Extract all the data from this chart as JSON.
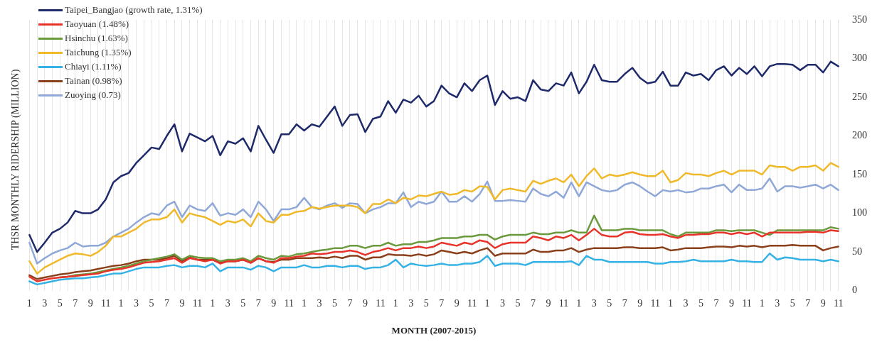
{
  "chart_data": {
    "type": "line",
    "xlabel": "MONTH (2007-2015)",
    "ylabel": "THSR MONTHLY RIDERSHIP (MILLION)",
    "categories": [
      "1",
      null,
      "3",
      null,
      "5",
      null,
      "7",
      null,
      "9",
      null,
      "11",
      null,
      "1",
      null,
      "3",
      null,
      "5",
      null,
      "7",
      null,
      "9",
      null,
      "11",
      null,
      "1",
      null,
      "3",
      null,
      "5",
      null,
      "7",
      null,
      "9",
      null,
      "11",
      null,
      "1",
      null,
      "3",
      null,
      "5",
      null,
      "7",
      null,
      "9",
      null,
      "11",
      null,
      "1",
      null,
      "3",
      null,
      "5",
      null,
      "7",
      null,
      "9",
      null,
      "11",
      null,
      "1",
      null,
      "3",
      null,
      "5",
      null,
      "7",
      null,
      "9",
      null,
      "11",
      null,
      "1",
      null,
      "3",
      null,
      "5",
      null,
      "7",
      null,
      "9",
      null,
      "11",
      null,
      "1",
      null,
      "3",
      null,
      "5",
      null,
      "7",
      null,
      "9",
      null,
      "11",
      null,
      "1",
      null,
      "3",
      null,
      "5",
      null,
      "7",
      null,
      "9",
      null,
      "11"
    ],
    "series": [
      {
        "name": "Taipei_Bangjao (growth rate, 1.31%)",
        "color": "#1f2a6b",
        "values": [
          72,
          50,
          62,
          75,
          80,
          88,
          103,
          100,
          100,
          105,
          118,
          140,
          148,
          152,
          165,
          175,
          185,
          183,
          200,
          215,
          180,
          203,
          198,
          193,
          200,
          175,
          193,
          190,
          197,
          180,
          213,
          195,
          178,
          202,
          202,
          215,
          207,
          215,
          212,
          225,
          238,
          213,
          227,
          228,
          205,
          222,
          225,
          245,
          230,
          247,
          243,
          252,
          238,
          245,
          265,
          255,
          250,
          268,
          258,
          272,
          278,
          240,
          258,
          248,
          250,
          245,
          272,
          260,
          258,
          268,
          265,
          282,
          255,
          270,
          292,
          272,
          270,
          270,
          280,
          288,
          275,
          268,
          270,
          283,
          265,
          265,
          282,
          278,
          280,
          272,
          285,
          290,
          278,
          288,
          280,
          290,
          277,
          290,
          293,
          293,
          292,
          285,
          292,
          292,
          282,
          296,
          290
        ]
      },
      {
        "name": "Taoyuan (1.48%)",
        "color": "#e8332a",
        "values": [
          18,
          12,
          14,
          16,
          17,
          18,
          19,
          20,
          21,
          22,
          25,
          27,
          28,
          30,
          33,
          36,
          37,
          38,
          40,
          42,
          36,
          42,
          40,
          38,
          40,
          35,
          38,
          38,
          40,
          36,
          42,
          38,
          36,
          42,
          42,
          44,
          45,
          48,
          47,
          48,
          50,
          50,
          52,
          50,
          46,
          50,
          52,
          55,
          52,
          55,
          55,
          57,
          55,
          57,
          62,
          60,
          58,
          62,
          60,
          65,
          63,
          55,
          60,
          62,
          62,
          62,
          70,
          68,
          65,
          70,
          68,
          72,
          65,
          72,
          80,
          72,
          70,
          70,
          75,
          76,
          73,
          72,
          72,
          73,
          70,
          68,
          72,
          72,
          73,
          73,
          75,
          75,
          73,
          75,
          73,
          75,
          70,
          75,
          75,
          75,
          75,
          75,
          76,
          76,
          75,
          78,
          77
        ]
      },
      {
        "name": "Hsinchu (1.63%)",
        "color": "#6a9a3c",
        "values": [
          null,
          null,
          null,
          null,
          17,
          18,
          20,
          21,
          22,
          24,
          26,
          28,
          30,
          32,
          35,
          38,
          40,
          42,
          44,
          47,
          40,
          45,
          43,
          42,
          42,
          38,
          40,
          40,
          42,
          38,
          45,
          42,
          40,
          45,
          44,
          47,
          48,
          50,
          52,
          53,
          55,
          55,
          58,
          58,
          55,
          58,
          58,
          62,
          58,
          60,
          60,
          63,
          63,
          65,
          68,
          68,
          68,
          70,
          70,
          72,
          72,
          66,
          70,
          72,
          72,
          72,
          75,
          73,
          73,
          75,
          75,
          78,
          75,
          75,
          97,
          78,
          78,
          78,
          80,
          80,
          78,
          78,
          78,
          78,
          73,
          70,
          75,
          75,
          75,
          75,
          78,
          78,
          77,
          78,
          78,
          78,
          75,
          72,
          78,
          78,
          78,
          78,
          78,
          78,
          78,
          82,
          80
        ]
      },
      {
        "name": "Taichung (1.35%)",
        "color": "#f0b92a",
        "values": [
          38,
          22,
          30,
          35,
          40,
          45,
          48,
          47,
          45,
          50,
          58,
          70,
          70,
          75,
          80,
          88,
          92,
          92,
          95,
          105,
          88,
          100,
          97,
          95,
          90,
          85,
          90,
          88,
          92,
          83,
          100,
          90,
          88,
          98,
          98,
          102,
          103,
          108,
          106,
          108,
          110,
          110,
          110,
          108,
          100,
          112,
          112,
          118,
          113,
          120,
          118,
          123,
          122,
          125,
          128,
          124,
          125,
          130,
          128,
          135,
          134,
          118,
          130,
          132,
          130,
          128,
          142,
          138,
          142,
          145,
          140,
          150,
          135,
          148,
          158,
          145,
          150,
          148,
          150,
          153,
          150,
          148,
          148,
          155,
          140,
          143,
          152,
          150,
          150,
          148,
          152,
          155,
          150,
          155,
          155,
          155,
          150,
          162,
          160,
          160,
          155,
          160,
          160,
          162,
          155,
          165,
          160
        ]
      },
      {
        "name": "Chiayi (1.11%)",
        "color": "#35b2e5",
        "values": [
          12,
          8,
          10,
          12,
          14,
          15,
          16,
          16,
          17,
          18,
          20,
          22,
          22,
          25,
          28,
          30,
          30,
          30,
          32,
          33,
          30,
          32,
          32,
          30,
          35,
          25,
          30,
          30,
          30,
          27,
          32,
          30,
          25,
          30,
          30,
          30,
          33,
          30,
          30,
          32,
          32,
          30,
          32,
          32,
          28,
          30,
          30,
          33,
          40,
          30,
          35,
          33,
          32,
          33,
          35,
          33,
          33,
          35,
          35,
          37,
          45,
          32,
          35,
          35,
          35,
          33,
          37,
          37,
          37,
          37,
          37,
          38,
          33,
          45,
          40,
          40,
          37,
          37,
          37,
          37,
          37,
          37,
          35,
          35,
          37,
          37,
          38,
          40,
          38,
          38,
          38,
          38,
          40,
          38,
          38,
          37,
          37,
          48,
          40,
          43,
          42,
          40,
          40,
          40,
          38,
          40,
          38
        ]
      },
      {
        "name": "Tainan (0.98%)",
        "color": "#8b3f1a",
        "values": [
          20,
          15,
          17,
          19,
          21,
          22,
          24,
          25,
          26,
          28,
          30,
          32,
          33,
          35,
          38,
          40,
          40,
          40,
          42,
          45,
          38,
          43,
          40,
          40,
          40,
          36,
          38,
          38,
          40,
          36,
          42,
          38,
          37,
          40,
          40,
          42,
          42,
          42,
          43,
          42,
          44,
          42,
          45,
          45,
          40,
          43,
          43,
          47,
          46,
          46,
          45,
          47,
          45,
          47,
          52,
          50,
          48,
          50,
          48,
          52,
          55,
          45,
          48,
          48,
          48,
          48,
          53,
          50,
          50,
          52,
          52,
          55,
          50,
          53,
          55,
          55,
          55,
          55,
          56,
          56,
          55,
          55,
          55,
          56,
          52,
          53,
          55,
          55,
          55,
          56,
          57,
          57,
          56,
          58,
          57,
          58,
          56,
          58,
          58,
          58,
          59,
          58,
          58,
          58,
          52,
          55,
          57
        ]
      },
      {
        "name": "Zuoying (0.73)",
        "color": "#8fa8d8",
        "values": [
          62,
          35,
          42,
          48,
          52,
          55,
          62,
          57,
          58,
          58,
          62,
          70,
          75,
          80,
          88,
          95,
          100,
          98,
          110,
          115,
          95,
          110,
          105,
          103,
          113,
          97,
          100,
          98,
          105,
          95,
          115,
          105,
          90,
          105,
          105,
          108,
          120,
          108,
          105,
          110,
          113,
          107,
          113,
          112,
          100,
          105,
          108,
          113,
          113,
          127,
          108,
          115,
          112,
          115,
          128,
          115,
          115,
          122,
          115,
          125,
          141,
          116,
          116,
          117,
          116,
          115,
          132,
          125,
          122,
          128,
          120,
          140,
          122,
          140,
          135,
          130,
          128,
          130,
          137,
          140,
          135,
          128,
          122,
          130,
          128,
          130,
          127,
          128,
          132,
          132,
          135,
          137,
          127,
          137,
          130,
          130,
          132,
          145,
          128,
          135,
          135,
          133,
          135,
          137,
          132,
          137,
          130
        ]
      }
    ],
    "ylim": [
      0,
      350
    ],
    "yticks": [
      0,
      50,
      100,
      150,
      200,
      250,
      300,
      350
    ],
    "grid": "x",
    "legend": "top left"
  }
}
